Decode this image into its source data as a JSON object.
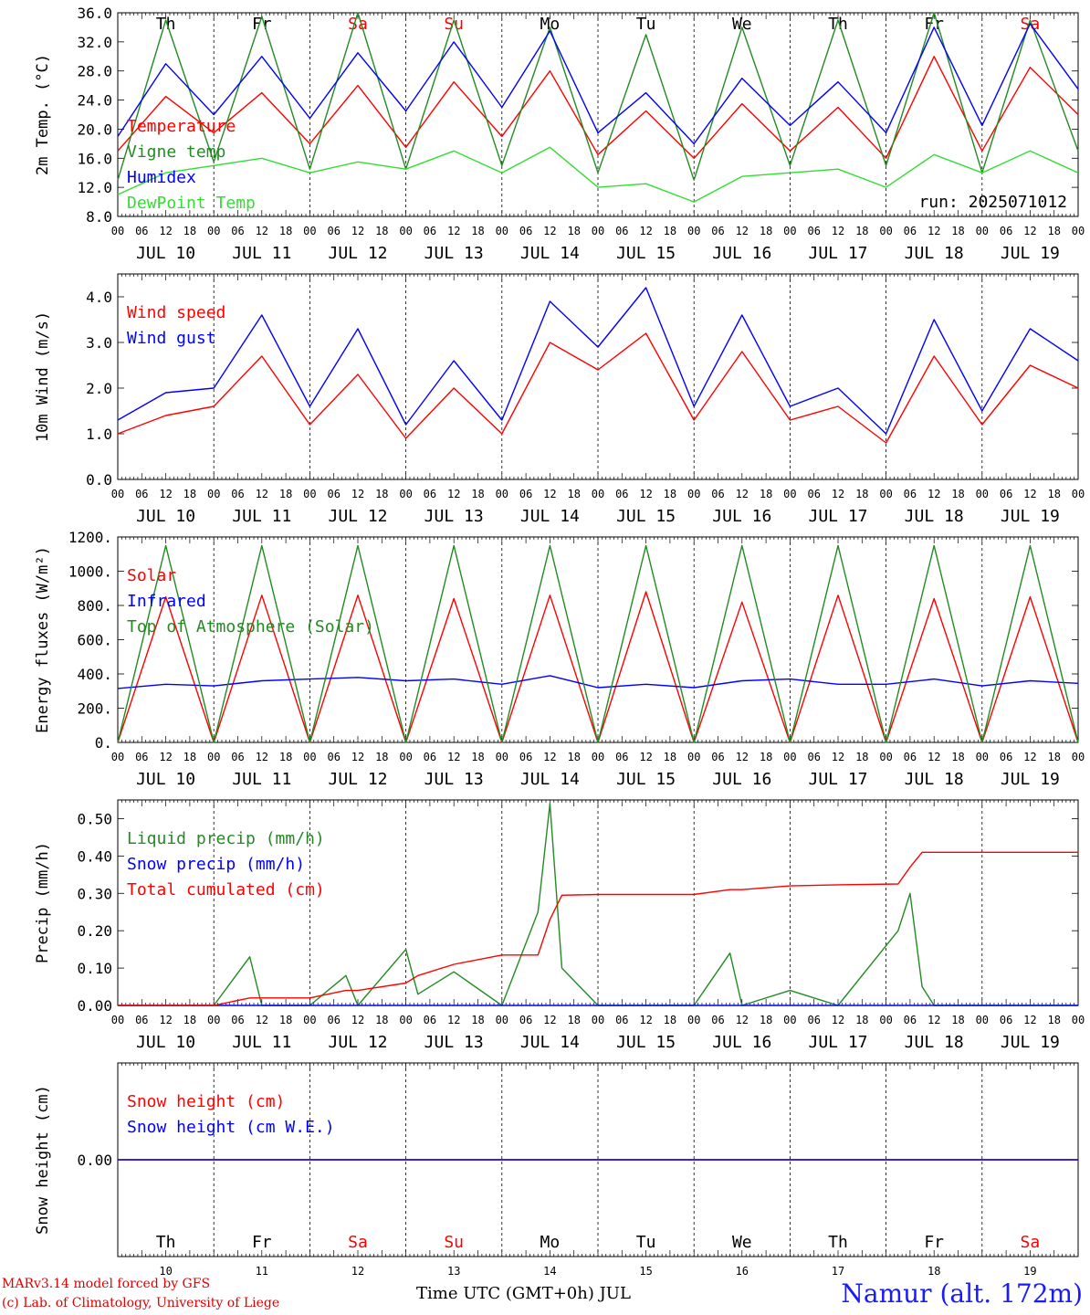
{
  "run_label": "run: 2025071012",
  "days": [
    {
      "weekday": "Th",
      "date": "JUL 10",
      "num": "10",
      "weekend": false
    },
    {
      "weekday": "Fr",
      "date": "JUL 11",
      "num": "11",
      "weekend": false
    },
    {
      "weekday": "Sa",
      "date": "JUL 12",
      "num": "12",
      "weekend": true
    },
    {
      "weekday": "Su",
      "date": "JUL 13",
      "num": "13",
      "weekend": true
    },
    {
      "weekday": "Mo",
      "date": "JUL 14",
      "num": "14",
      "weekend": false
    },
    {
      "weekday": "Tu",
      "date": "JUL 15",
      "num": "15",
      "weekend": false
    },
    {
      "weekday": "We",
      "date": "JUL 16",
      "num": "16",
      "weekend": false
    },
    {
      "weekday": "Th",
      "date": "JUL 17",
      "num": "17",
      "weekend": false
    },
    {
      "weekday": "Fr",
      "date": "JUL 18",
      "num": "18",
      "weekend": false
    },
    {
      "weekday": "Sa",
      "date": "JUL 19",
      "num": "19",
      "weekend": true
    }
  ],
  "hour_ticks": [
    "00",
    "06",
    "12",
    "18"
  ],
  "colors": {
    "red": "#ff0000",
    "green": "#228b22",
    "blue": "#0000ff",
    "lightgreen": "#33dd33",
    "weekend": "#ff0000"
  },
  "footer": {
    "credit1": "MARv3.14 model forced by GFS",
    "credit2": "(c) Lab. of Climatology, University of Liege",
    "xlabel": "Time UTC (GMT+0h) JUL",
    "station": "Namur (alt. 172m)"
  },
  "chart_data": [
    {
      "type": "line",
      "ylabel": "2m Temp. (°C)",
      "ylim": [
        8,
        36
      ],
      "yticks": [
        "8.0",
        "12.0",
        "16.0",
        "20.0",
        "24.0",
        "28.0",
        "32.0",
        "36.0"
      ],
      "x": [
        0,
        12,
        24,
        36,
        48,
        60,
        72,
        84,
        96,
        108,
        120,
        132,
        144,
        156,
        168,
        180,
        192,
        204,
        216,
        228,
        240
      ],
      "show_weekdays": true,
      "series": [
        {
          "name": "Temperature",
          "color": "red",
          "values": [
            17.0,
            24.5,
            19.5,
            25.0,
            18.0,
            26.0,
            17.5,
            26.5,
            19.0,
            28.0,
            16.5,
            22.5,
            16.0,
            23.5,
            17.0,
            23.0,
            16.0,
            30.0,
            17.0,
            28.5,
            22.0
          ]
        },
        {
          "name": "Vigne temp",
          "color": "green",
          "values": [
            13.0,
            35.0,
            15.5,
            35.5,
            14.5,
            36.0,
            14.5,
            35.0,
            15.0,
            34.0,
            14.0,
            33.0,
            13.0,
            34.0,
            15.0,
            35.0,
            15.0,
            36.0,
            14.0,
            35.0,
            17.0
          ]
        },
        {
          "name": "Humidex",
          "color": "blue",
          "values": [
            19.0,
            29.0,
            22.0,
            30.0,
            21.5,
            30.5,
            22.5,
            32.0,
            23.0,
            33.5,
            19.5,
            25.0,
            18.0,
            27.0,
            20.5,
            26.5,
            19.5,
            34.0,
            20.5,
            34.5,
            25.5
          ]
        },
        {
          "name": "DewPoint Temp",
          "color": "lightgreen",
          "values": [
            11.0,
            14.0,
            15.0,
            16.0,
            14.0,
            15.5,
            14.5,
            17.0,
            14.0,
            17.5,
            12.0,
            12.5,
            10.0,
            13.5,
            14.0,
            14.5,
            12.0,
            16.5,
            14.0,
            17.0,
            14.0
          ]
        }
      ]
    },
    {
      "type": "line",
      "ylabel": "10m Wind (m/s)",
      "ylim": [
        0,
        4.5
      ],
      "yticks": [
        "0.0",
        "1.0",
        "2.0",
        "3.0",
        "4.0"
      ],
      "x": [
        0,
        12,
        24,
        36,
        48,
        60,
        72,
        84,
        96,
        108,
        120,
        132,
        144,
        156,
        168,
        180,
        192,
        204,
        216,
        228,
        240
      ],
      "show_weekdays": false,
      "series": [
        {
          "name": "Wind speed",
          "color": "red",
          "values": [
            1.0,
            1.4,
            1.6,
            2.7,
            1.2,
            2.3,
            0.9,
            2.0,
            1.0,
            3.0,
            2.4,
            3.2,
            1.3,
            2.8,
            1.3,
            1.6,
            0.8,
            2.7,
            1.2,
            2.5,
            2.0
          ]
        },
        {
          "name": "Wind gust",
          "color": "blue",
          "values": [
            1.3,
            1.9,
            2.0,
            3.6,
            1.6,
            3.3,
            1.2,
            2.6,
            1.3,
            3.9,
            2.9,
            4.2,
            1.6,
            3.6,
            1.6,
            2.0,
            1.0,
            3.5,
            1.5,
            3.3,
            2.6
          ]
        }
      ]
    },
    {
      "type": "line",
      "ylabel": "Energy fluxes (W/m²)",
      "ylim": [
        0,
        1200
      ],
      "yticks": [
        "0.",
        "200.",
        "400.",
        "600.",
        "800.",
        "1000.",
        "1200."
      ],
      "x": [
        0,
        12,
        24,
        36,
        48,
        60,
        72,
        84,
        96,
        108,
        120,
        132,
        144,
        156,
        168,
        180,
        192,
        204,
        216,
        228,
        240
      ],
      "show_weekdays": false,
      "series": [
        {
          "name": "Solar",
          "color": "red",
          "values": [
            0,
            850,
            0,
            860,
            0,
            860,
            0,
            840,
            0,
            860,
            0,
            880,
            0,
            820,
            0,
            860,
            0,
            840,
            0,
            850,
            0
          ]
        },
        {
          "name": "Infrared",
          "color": "blue",
          "values": [
            315,
            340,
            330,
            360,
            370,
            380,
            360,
            370,
            340,
            390,
            320,
            340,
            320,
            360,
            370,
            340,
            340,
            370,
            330,
            360,
            345
          ]
        },
        {
          "name": "Top of Atmosphere (Solar)",
          "color": "green",
          "values": [
            0,
            1150,
            0,
            1150,
            0,
            1150,
            0,
            1150,
            0,
            1150,
            0,
            1150,
            0,
            1150,
            0,
            1150,
            0,
            1150,
            0,
            1150,
            0
          ]
        }
      ]
    },
    {
      "type": "line",
      "ylabel": "Precip (mm/h)",
      "ylim": [
        0,
        0.55
      ],
      "yticks": [
        "0.00",
        "0.10",
        "0.20",
        "0.30",
        "0.40",
        "0.50"
      ],
      "x": [
        0,
        12,
        24,
        33,
        36,
        48,
        57,
        60,
        72,
        75,
        84,
        96,
        105,
        108,
        111,
        120,
        132,
        144,
        153,
        156,
        168,
        180,
        195,
        198,
        201,
        204,
        216,
        240
      ],
      "show_weekdays": false,
      "series": [
        {
          "name": "Liquid precip (mm/h)",
          "color": "green",
          "values": [
            0,
            0,
            0,
            0.13,
            0,
            0,
            0.08,
            0,
            0.15,
            0.03,
            0.09,
            0,
            0.25,
            0.54,
            0.1,
            0,
            0,
            0,
            0.14,
            0,
            0.04,
            0,
            0.2,
            0.3,
            0.05,
            0,
            0,
            0
          ]
        },
        {
          "name": "Snow precip (mm/h)",
          "color": "blue",
          "values": [
            0,
            0,
            0,
            0,
            0,
            0,
            0,
            0,
            0,
            0,
            0,
            0,
            0,
            0,
            0,
            0,
            0,
            0,
            0,
            0,
            0,
            0,
            0,
            0,
            0,
            0,
            0,
            0
          ]
        },
        {
          "name": "Total cumulated (cm)",
          "color": "red",
          "values": [
            0,
            0,
            0,
            0.02,
            0.02,
            0.02,
            0.04,
            0.04,
            0.06,
            0.08,
            0.11,
            0.135,
            0.135,
            0.23,
            0.295,
            0.297,
            0.297,
            0.297,
            0.31,
            0.31,
            0.32,
            0.323,
            0.325,
            0.37,
            0.41,
            0.41,
            0.41,
            0.41
          ]
        }
      ]
    },
    {
      "type": "line",
      "ylabel": "Snow height (cm)",
      "ylim": [
        -1,
        1
      ],
      "yticks": [
        "0.00"
      ],
      "x": [
        0,
        240
      ],
      "show_weekdays": true,
      "series": [
        {
          "name": "Snow height (cm)",
          "color": "red",
          "values": [
            0,
            0
          ]
        },
        {
          "name": "Snow height (cm W.E.)",
          "color": "blue",
          "values": [
            0,
            0
          ]
        }
      ]
    }
  ]
}
